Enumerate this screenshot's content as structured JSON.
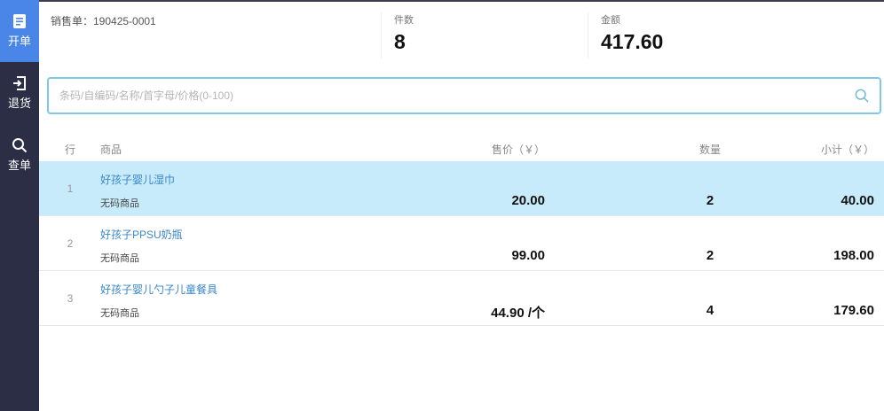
{
  "sidebar": {
    "items": [
      {
        "label": "开单",
        "icon": "document-icon",
        "active": true
      },
      {
        "label": "退货",
        "icon": "return-icon"
      },
      {
        "label": "查单",
        "icon": "search-icon"
      }
    ]
  },
  "header": {
    "order_label": "销售单：190425-0001",
    "count_label": "件数",
    "count": "8",
    "amount_label": "金额",
    "amount": "417.60"
  },
  "search": {
    "placeholder": "条码/自编码/名称/首字母/价格(0-100)",
    "value": ""
  },
  "table": {
    "columns": [
      "行",
      "商品",
      "售价（￥）",
      "数量",
      "小计（￥）"
    ],
    "rows": [
      {
        "no": "1",
        "name": "好孩子婴儿湿巾",
        "code": "无码商品",
        "price": "20.00",
        "qty": "2",
        "subtotal": "40.00",
        "selected": true
      },
      {
        "no": "2",
        "name": "好孩子PPSU奶瓶",
        "code": "无码商品",
        "price": "99.00",
        "qty": "2",
        "subtotal": "198.00"
      },
      {
        "no": "3",
        "name": "好孩子婴儿勺子儿童餐具",
        "code": "无码商品",
        "price": "44.90 /个",
        "qty": "4",
        "subtotal": "179.60"
      }
    ]
  },
  "colors": {
    "sidebar": "#2b2e45",
    "active": "#4a86e8",
    "selected_row": "#c7ebfb",
    "link": "#3a86c8"
  }
}
